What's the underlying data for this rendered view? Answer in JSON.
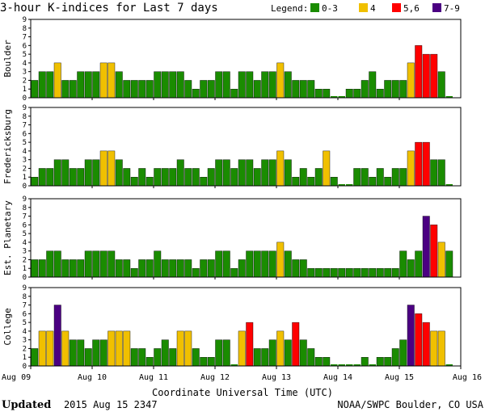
{
  "title": "3-hour K-indices for Last 7 days",
  "legend": {
    "label": "Legend:",
    "items": [
      {
        "label": "0-3",
        "color": "#1a8c00"
      },
      {
        "label": "4",
        "color": "#f0c000"
      },
      {
        "label": "5,6",
        "color": "#ff0000"
      },
      {
        "label": "7-9",
        "color": "#4b0082"
      }
    ]
  },
  "footer": {
    "updated_label": "Updated",
    "updated_value": "2015 Aug 15 2347",
    "source": "NOAA/SWPC Boulder, CO USA"
  },
  "chart_data": {
    "type": "bar",
    "title": "3-hour K-indices for Last 7 days",
    "xlabel": "Coordinate Universal Time (UTC)",
    "x_ticks": [
      "Aug 09",
      "Aug 10",
      "Aug 11",
      "Aug 12",
      "Aug 13",
      "Aug 14",
      "Aug 15",
      "Aug 16"
    ],
    "ylim": [
      0,
      9
    ],
    "y_ticks": [
      0,
      1,
      2,
      3,
      4,
      5,
      6,
      7,
      8,
      9
    ],
    "bars_per_day": 8,
    "color_scale": {
      "0-3": "#1a8c00",
      "4": "#f0c000",
      "5,6": "#ff0000",
      "7-9": "#4b0082"
    },
    "series": [
      {
        "name": "Boulder",
        "values": [
          2,
          3,
          3,
          4,
          2,
          2,
          3,
          3,
          3,
          4,
          4,
          3,
          2,
          2,
          2,
          2,
          3,
          3,
          3,
          3,
          2,
          1,
          2,
          2,
          3,
          3,
          1,
          3,
          3,
          2,
          3,
          3,
          4,
          3,
          2,
          2,
          2,
          1,
          1,
          0,
          0,
          1,
          1,
          2,
          3,
          1,
          2,
          2,
          2,
          4,
          6,
          5,
          5,
          3,
          0
        ]
      },
      {
        "name": "Fredericksburg",
        "values": [
          1,
          2,
          2,
          3,
          3,
          2,
          2,
          3,
          3,
          4,
          4,
          3,
          2,
          1,
          2,
          1,
          2,
          2,
          2,
          3,
          2,
          2,
          1,
          2,
          3,
          3,
          2,
          3,
          3,
          2,
          3,
          3,
          4,
          3,
          1,
          2,
          1,
          2,
          4,
          1,
          0,
          0,
          2,
          2,
          1,
          2,
          1,
          2,
          2,
          4,
          5,
          5,
          3,
          3,
          0
        ]
      },
      {
        "name": "Est. Planetary",
        "values": [
          2,
          2,
          3,
          3,
          2,
          2,
          2,
          3,
          3,
          3,
          3,
          2,
          2,
          1,
          2,
          2,
          3,
          2,
          2,
          2,
          2,
          1,
          2,
          2,
          3,
          3,
          1,
          2,
          3,
          3,
          3,
          3,
          4,
          3,
          2,
          2,
          1,
          1,
          1,
          1,
          1,
          1,
          1,
          1,
          1,
          1,
          1,
          1,
          3,
          2,
          3,
          7,
          6,
          4,
          3
        ]
      },
      {
        "name": "College",
        "values": [
          2,
          4,
          4,
          7,
          4,
          3,
          3,
          2,
          3,
          3,
          4,
          4,
          4,
          2,
          2,
          1,
          2,
          3,
          2,
          4,
          4,
          2,
          1,
          1,
          3,
          3,
          0,
          4,
          5,
          2,
          2,
          3,
          4,
          3,
          5,
          3,
          2,
          1,
          1,
          0,
          0,
          0,
          0,
          1,
          0,
          1,
          1,
          2,
          3,
          7,
          6,
          5,
          4,
          4,
          0
        ]
      }
    ]
  }
}
